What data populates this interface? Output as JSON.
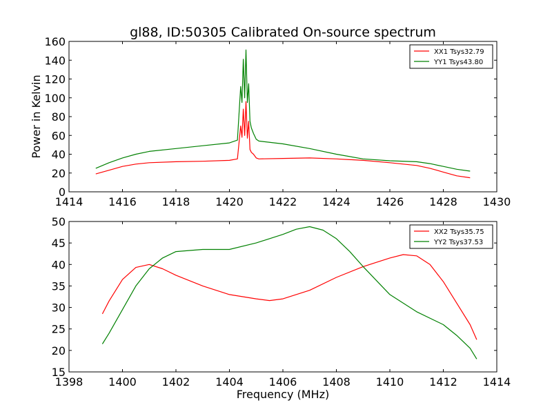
{
  "chart_data": [
    {
      "type": "line",
      "title": "gl88, ID:50305 Calibrated On-source spectrum",
      "xlabel": "",
      "ylabel": "Power in Kelvin",
      "xlim": [
        1414,
        1430
      ],
      "ylim": [
        0,
        160
      ],
      "xticks": [
        1414,
        1416,
        1418,
        1420,
        1422,
        1424,
        1426,
        1428,
        1430
      ],
      "yticks": [
        0,
        20,
        40,
        60,
        80,
        100,
        120,
        140,
        160
      ],
      "legend_position": "top-right",
      "series": [
        {
          "name": "XX1 Tsys32.79",
          "color": "#ff0000",
          "x": [
            1415.0,
            1415.5,
            1416.0,
            1416.5,
            1417.0,
            1418.0,
            1419.0,
            1420.0,
            1420.3,
            1420.42,
            1420.47,
            1420.52,
            1420.57,
            1420.62,
            1420.67,
            1420.72,
            1420.77,
            1420.82,
            1420.9,
            1421.0,
            1421.1,
            1422.0,
            1423.0,
            1424.0,
            1425.0,
            1426.0,
            1427.0,
            1427.5,
            1428.0,
            1428.5,
            1429.0
          ],
          "values": [
            19,
            23,
            27,
            29.5,
            31,
            32,
            32.5,
            33.5,
            35,
            70,
            58,
            88,
            60,
            96,
            57,
            75,
            45,
            42,
            40,
            36,
            35,
            35.5,
            36,
            35,
            33.5,
            31,
            28,
            25,
            21,
            17,
            15
          ]
        },
        {
          "name": "YY1 Tsys43.80",
          "color": "#008000",
          "x": [
            1415.0,
            1415.5,
            1416.0,
            1416.5,
            1417.0,
            1418.0,
            1419.0,
            1420.0,
            1420.3,
            1420.42,
            1420.47,
            1420.52,
            1420.57,
            1420.62,
            1420.67,
            1420.72,
            1420.77,
            1420.82,
            1420.9,
            1421.0,
            1421.1,
            1422.0,
            1423.0,
            1424.0,
            1425.0,
            1426.0,
            1427.0,
            1427.5,
            1428.0,
            1428.5,
            1429.0
          ],
          "values": [
            25,
            31,
            36,
            40,
            43,
            46,
            49,
            52,
            55,
            112,
            95,
            141,
            100,
            151,
            95,
            115,
            75,
            68,
            62,
            56,
            54,
            51,
            46,
            40,
            35,
            33,
            32,
            30,
            27,
            24,
            22
          ]
        }
      ]
    },
    {
      "type": "line",
      "title": "",
      "xlabel": "Frequency (MHz)",
      "ylabel": "",
      "xlim": [
        1398,
        1414
      ],
      "ylim": [
        15,
        50
      ],
      "xticks": [
        1398,
        1400,
        1402,
        1404,
        1406,
        1408,
        1410,
        1412,
        1414
      ],
      "yticks": [
        15,
        20,
        25,
        30,
        35,
        40,
        45,
        50
      ],
      "legend_position": "top-right",
      "series": [
        {
          "name": "XX2 Tsys35.75",
          "color": "#ff0000",
          "x": [
            1399.25,
            1399.5,
            1400.0,
            1400.5,
            1401.0,
            1401.5,
            1402.0,
            1403.0,
            1404.0,
            1405.0,
            1405.5,
            1406.0,
            1407.0,
            1408.0,
            1409.0,
            1410.0,
            1410.5,
            1411.0,
            1411.5,
            1412.0,
            1412.5,
            1413.0,
            1413.25
          ],
          "values": [
            28.5,
            31.5,
            36.5,
            39.3,
            40.0,
            39.0,
            37.5,
            35.0,
            33.0,
            32.0,
            31.6,
            32.0,
            34.0,
            37.0,
            39.5,
            41.5,
            42.3,
            42.0,
            40.0,
            36.0,
            31.0,
            26.0,
            22.5
          ]
        },
        {
          "name": "YY2 Tsys37.53",
          "color": "#008000",
          "x": [
            1399.25,
            1399.5,
            1400.0,
            1400.5,
            1401.0,
            1401.5,
            1402.0,
            1403.0,
            1404.0,
            1405.0,
            1406.0,
            1406.5,
            1407.0,
            1407.5,
            1408.0,
            1408.5,
            1409.0,
            1410.0,
            1411.0,
            1412.0,
            1412.5,
            1413.0,
            1413.25
          ],
          "values": [
            21.5,
            24.0,
            29.5,
            35.0,
            39.0,
            41.5,
            43.0,
            43.5,
            43.5,
            45.0,
            47.0,
            48.2,
            48.8,
            48.0,
            46.0,
            43.0,
            39.5,
            33.0,
            29.0,
            26.0,
            23.5,
            20.5,
            18.0
          ]
        }
      ]
    }
  ]
}
